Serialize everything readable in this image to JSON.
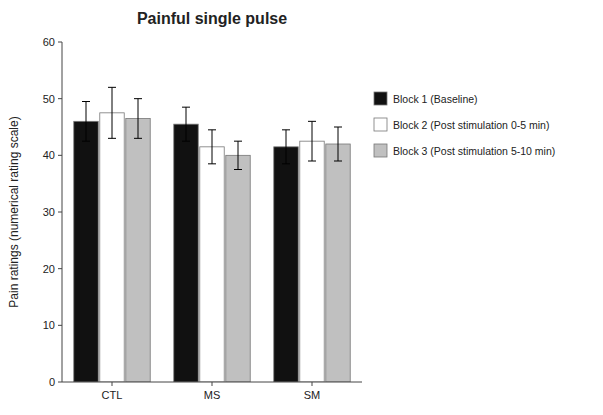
{
  "chart_data": {
    "type": "bar",
    "title": "Painful single pulse",
    "ylabel": "Pain ratings (numerical rating scale)",
    "categories": [
      "CTL",
      "MS",
      "SM"
    ],
    "series": [
      {
        "name": "Block 1 (Baseline)",
        "color": "#111111",
        "values": [
          46.0,
          45.5,
          41.5
        ],
        "errors": [
          3.5,
          3.0,
          3.0
        ]
      },
      {
        "name": "Block 2 (Post stimulation 0-5 min)",
        "color": "#ffffff",
        "values": [
          47.5,
          41.5,
          42.5
        ],
        "errors": [
          4.5,
          3.0,
          3.5
        ]
      },
      {
        "name": "Block 3 (Post stimulation 5-10 min)",
        "color": "#c0c0c0",
        "values": [
          46.5,
          40.0,
          42.0
        ],
        "errors": [
          3.5,
          2.5,
          3.0
        ]
      }
    ],
    "ylim": [
      0,
      60
    ],
    "yticks": [
      0,
      10,
      20,
      30,
      40,
      50,
      60
    ],
    "grid": false,
    "legend": "right"
  }
}
